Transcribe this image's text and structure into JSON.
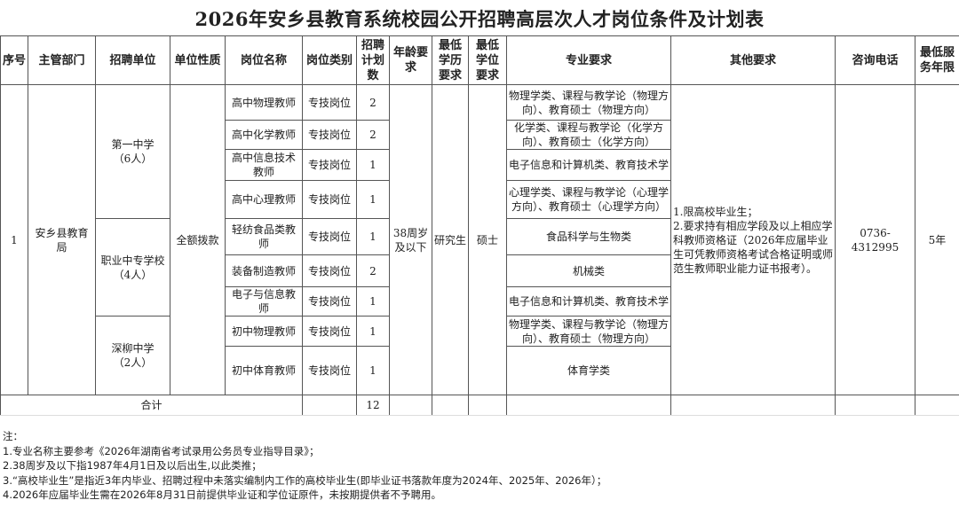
{
  "title": "2026年安乡县教育系统校园公开招聘高层次人才岗位条件及计划表",
  "headers": [
    "序号",
    "主管部门",
    "招聘单位",
    "单位性质",
    "岗位名称",
    "岗位类别",
    "招聘计划数",
    "年龄要求",
    "最低学历要求",
    "最低学位要求",
    "专业要求",
    "其他要求",
    "咨询电话",
    "最低服务年限"
  ],
  "common": {
    "seq": "1",
    "dept": "安乡县教育局",
    "nature": "全额拨款",
    "age": "38周岁及以下",
    "edu": "研究生",
    "degree": "硕士",
    "other": "1.限高校毕业生；\n2.要求持有相应学段及以上相应学科教师资格证（2026年应届毕业生可凭教师资格考试合格证明或师范生教师职业能力证书报考）。",
    "phone": "0736-4312995",
    "service": "5年"
  },
  "units": [
    {
      "name": "第一中学\n（6人）"
    },
    {
      "name": "职业中专学校\n（4人）"
    },
    {
      "name": "深柳中学\n（2人）"
    }
  ],
  "rows": [
    {
      "post": "高中物理教师",
      "type": "专技岗位",
      "count": "2",
      "major": "物理学类、课程与教学论（物理方向）、教育硕士（物理方向）"
    },
    {
      "post": "高中化学教师",
      "type": "专技岗位",
      "count": "2",
      "major": "化学类、课程与教学论（化学方向）、教育硕士（化学方向）"
    },
    {
      "post": "高中信息技术教师",
      "type": "专技岗位",
      "count": "1",
      "major": "电子信息和计算机类、教育技术学"
    },
    {
      "post": "高中心理教师",
      "type": "专技岗位",
      "count": "1",
      "major": "心理学类、课程与教学论（心理学方向）、教育硕士（心理学方向）"
    },
    {
      "post": "轻纺食品类教师",
      "type": "专技岗位",
      "count": "1",
      "major": "食品科学与生物类"
    },
    {
      "post": "装备制造教师",
      "type": "专技岗位",
      "count": "2",
      "major": "机械类"
    },
    {
      "post": "电子与信息教师",
      "type": "专技岗位",
      "count": "1",
      "major": "电子信息和计算机类、教育技术学"
    },
    {
      "post": "初中物理教师",
      "type": "专技岗位",
      "count": "1",
      "major": "物理学类、课程与教学论（物理方向）、教育硕士（物理方向）"
    },
    {
      "post": "初中体育教师",
      "type": "专技岗位",
      "count": "1",
      "major": "体育学类"
    }
  ],
  "total": {
    "label": "合计",
    "count": "12"
  },
  "notes": [
    "注：",
    "1.专业名称主要参考《2026年湖南省考试录用公务员专业指导目录》；",
    "2.38周岁及以下指1987年4月1日及以后出生,以此类推；",
    "3.“高校毕业生”是指近3年内毕业、招聘过程中未落实编制内工作的高校毕业生(即毕业证书落款年度为2024年、2025年、2026年）；",
    "4.2026年应届毕业生需在2026年8月31日前提供毕业证和学位证原件，未按期提供者不予聘用。"
  ]
}
